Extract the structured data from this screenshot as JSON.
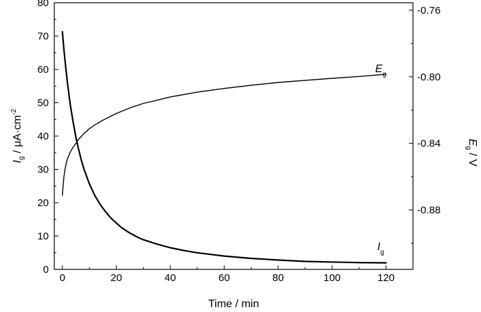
{
  "chart_data": {
    "type": "line",
    "x_axis": {
      "label": "Time / min",
      "range": [
        -3,
        130
      ],
      "ticks": [
        0,
        20,
        40,
        60,
        80,
        100,
        120
      ]
    },
    "y_left_axis": {
      "label_symbol": "I",
      "label_subscript": "g",
      "label_unit": " / μA·cm",
      "label_superscript": "-2",
      "range": [
        0,
        80
      ],
      "ticks": [
        0,
        10,
        20,
        30,
        40,
        50,
        60,
        70,
        80
      ]
    },
    "y_right_axis": {
      "label_symbol": "E",
      "label_subscript": "g",
      "label_unit": " / V",
      "range": [
        -0.9157,
        -0.7555
      ],
      "ticks": [
        -0.76,
        -0.8,
        -0.84,
        -0.88
      ],
      "tick_labels": [
        "-0.76",
        "-0.80",
        "-0.84",
        "-0.88"
      ]
    },
    "grid": false,
    "legend": "none",
    "series": [
      {
        "name_symbol": "I",
        "name_subscript": "g",
        "axis": "left",
        "x": [
          0,
          0.5,
          1,
          1.5,
          2,
          3,
          4,
          5,
          6,
          7,
          8,
          10,
          12,
          14,
          16,
          18,
          20,
          22,
          25,
          28,
          30,
          35,
          40,
          45,
          50,
          55,
          60,
          70,
          80,
          90,
          100,
          110,
          120
        ],
        "y": [
          71.3,
          66.7,
          62.5,
          58.7,
          55.2,
          49.1,
          44.1,
          39.7,
          36.1,
          32.9,
          30.1,
          25.7,
          22.2,
          19.5,
          17.3,
          15.4,
          13.9,
          12.5,
          10.9,
          9.6,
          8.9,
          7.6,
          6.5,
          5.7,
          5.0,
          4.5,
          4.0,
          3.3,
          2.8,
          2.4,
          2.2,
          2.05,
          1.95
        ]
      },
      {
        "name_symbol": "E",
        "name_subscript": "g",
        "axis": "right",
        "x": [
          0,
          0.3,
          0.6,
          1,
          1.5,
          2,
          3,
          4,
          5,
          6,
          8,
          10,
          12,
          15,
          20,
          25,
          30,
          35,
          40,
          50,
          60,
          70,
          80,
          90,
          100,
          110,
          120
        ],
        "y": [
          -0.8712,
          -0.8645,
          -0.8598,
          -0.8553,
          -0.8515,
          -0.8488,
          -0.845,
          -0.8422,
          -0.84,
          -0.8375,
          -0.8341,
          -0.8312,
          -0.8289,
          -0.8261,
          -0.822,
          -0.8187,
          -0.816,
          -0.8141,
          -0.8121,
          -0.8092,
          -0.807,
          -0.8051,
          -0.8034,
          -0.8021,
          -0.8009,
          -0.7998,
          -0.7985
        ]
      }
    ]
  }
}
